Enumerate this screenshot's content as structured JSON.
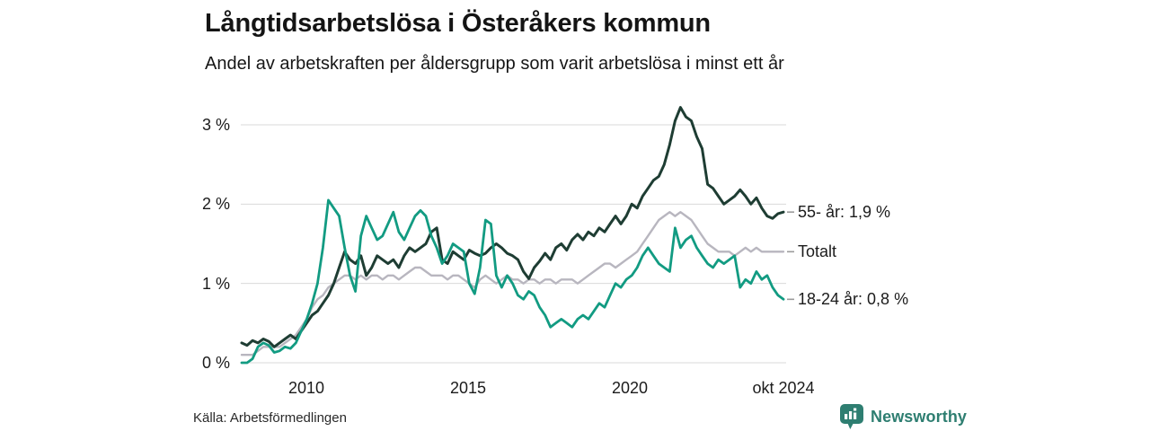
{
  "header": {
    "title": "Långtidsarbetslösa i Österåkers kommun",
    "subtitle": "Andel av arbetskraften per åldersgrupp som varit arbetslösa i minst ett år"
  },
  "footer": {
    "source": "Källa: Arbetsförmedlingen",
    "brand": "Newsworthy"
  },
  "colors": {
    "series_55": "#1e3d33",
    "series_total": "#b8b6bf",
    "series_18_24": "#129b82",
    "gridline": "#d9d9d9",
    "tick_dash": "#9b9b9b",
    "brand_teal": "#2e7e71",
    "text": "#1b1b1b"
  },
  "chart_data": {
    "type": "line",
    "title": "Långtidsarbetslösa i Österåkers kommun",
    "subtitle": "Andel av arbetskraften per åldersgrupp som varit arbetslösa i minst ett år",
    "unit": "% av arbetskraften",
    "grid": "horizontal",
    "legend_position": "right-end-labels",
    "x_axis": {
      "start": 2008.0,
      "end": 2024.75,
      "ticks": [
        2010,
        2015,
        2020,
        2024.75
      ],
      "tick_labels": [
        "2010",
        "2015",
        "2020",
        "okt 2024"
      ]
    },
    "y_axis": {
      "min": 0,
      "max": 3.45,
      "ticks": [
        0,
        1,
        2,
        3
      ],
      "tick_labels": [
        "0 %",
        "1 %",
        "2 %",
        "3 %"
      ]
    },
    "series": [
      {
        "name": "55- år",
        "end_label": "55- år: 1,9 %",
        "last_value_display": "1,9 %",
        "color": "#1e3d33",
        "stroke_width": 3,
        "values": [
          0.25,
          0.22,
          0.28,
          0.25,
          0.3,
          0.27,
          0.2,
          0.25,
          0.3,
          0.35,
          0.3,
          0.4,
          0.5,
          0.6,
          0.65,
          0.75,
          0.85,
          1.0,
          1.2,
          1.4,
          1.3,
          1.25,
          1.35,
          1.1,
          1.2,
          1.35,
          1.3,
          1.25,
          1.3,
          1.2,
          1.35,
          1.45,
          1.4,
          1.45,
          1.5,
          1.65,
          1.7,
          1.3,
          1.25,
          1.4,
          1.35,
          1.3,
          1.42,
          1.38,
          1.35,
          1.38,
          1.45,
          1.5,
          1.45,
          1.38,
          1.35,
          1.3,
          1.15,
          1.06,
          1.2,
          1.28,
          1.38,
          1.3,
          1.45,
          1.5,
          1.42,
          1.55,
          1.62,
          1.55,
          1.65,
          1.6,
          1.7,
          1.65,
          1.75,
          1.85,
          1.75,
          1.85,
          2.0,
          1.95,
          2.1,
          2.2,
          2.3,
          2.35,
          2.5,
          2.75,
          3.05,
          3.22,
          3.1,
          3.05,
          2.85,
          2.7,
          2.25,
          2.2,
          2.1,
          2.0,
          2.05,
          2.1,
          2.18,
          2.1,
          2.0,
          2.08,
          1.95,
          1.85,
          1.82,
          1.88,
          1.9
        ]
      },
      {
        "name": "Totalt",
        "end_label": "Totalt",
        "color": "#b8b6bf",
        "stroke_width": 2.4,
        "values": [
          0.1,
          0.1,
          0.1,
          0.15,
          0.2,
          0.2,
          0.2,
          0.2,
          0.25,
          0.3,
          0.35,
          0.45,
          0.55,
          0.7,
          0.8,
          0.85,
          0.95,
          1.0,
          1.05,
          1.1,
          1.1,
          1.05,
          1.1,
          1.05,
          1.1,
          1.1,
          1.05,
          1.1,
          1.1,
          1.05,
          1.1,
          1.15,
          1.2,
          1.2,
          1.15,
          1.1,
          1.1,
          1.1,
          1.05,
          1.1,
          1.1,
          1.05,
          1.0,
          0.95,
          1.05,
          1.1,
          1.05,
          1.0,
          1.05,
          1.1,
          1.05,
          1.05,
          1.0,
          1.05,
          1.05,
          1.0,
          1.05,
          1.05,
          1.0,
          1.05,
          1.05,
          1.05,
          1.0,
          1.05,
          1.1,
          1.15,
          1.2,
          1.25,
          1.25,
          1.2,
          1.25,
          1.3,
          1.35,
          1.4,
          1.5,
          1.6,
          1.7,
          1.8,
          1.85,
          1.9,
          1.85,
          1.9,
          1.85,
          1.8,
          1.7,
          1.6,
          1.5,
          1.45,
          1.4,
          1.4,
          1.4,
          1.35,
          1.4,
          1.45,
          1.4,
          1.45,
          1.4,
          1.4,
          1.4,
          1.4,
          1.4
        ]
      },
      {
        "name": "18-24 år",
        "end_label": "18-24 år: 0,8 %",
        "last_value_display": "0,8 %",
        "color": "#129b82",
        "stroke_width": 2.8,
        "values": [
          0.0,
          0.0,
          0.05,
          0.2,
          0.25,
          0.22,
          0.13,
          0.15,
          0.2,
          0.18,
          0.25,
          0.4,
          0.55,
          0.75,
          1.0,
          1.45,
          2.05,
          1.95,
          1.85,
          1.45,
          1.1,
          0.9,
          1.6,
          1.85,
          1.7,
          1.55,
          1.6,
          1.75,
          1.9,
          1.65,
          1.55,
          1.7,
          1.85,
          1.92,
          1.85,
          1.6,
          1.45,
          1.25,
          1.35,
          1.5,
          1.45,
          1.4,
          1.0,
          0.87,
          1.2,
          1.8,
          1.75,
          1.1,
          0.95,
          1.1,
          1.0,
          0.85,
          0.8,
          0.9,
          0.85,
          0.7,
          0.6,
          0.45,
          0.5,
          0.55,
          0.5,
          0.45,
          0.55,
          0.6,
          0.55,
          0.65,
          0.75,
          0.7,
          0.85,
          1.0,
          0.95,
          1.05,
          1.1,
          1.2,
          1.35,
          1.45,
          1.35,
          1.25,
          1.2,
          1.15,
          1.7,
          1.45,
          1.55,
          1.6,
          1.45,
          1.35,
          1.25,
          1.2,
          1.3,
          1.25,
          1.3,
          1.35,
          0.95,
          1.05,
          1.0,
          1.15,
          1.05,
          1.1,
          0.95,
          0.85,
          0.8
        ]
      }
    ]
  }
}
